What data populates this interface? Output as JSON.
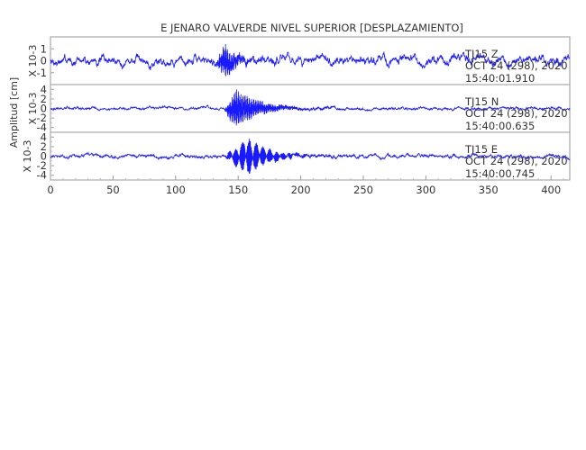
{
  "chart_data": {
    "type": "line",
    "title": "E JENARO VALVERDE NIVEL SUPERIOR [DESPLAZAMIENTO]",
    "ylabel": "Amplitud [cm]",
    "xlim": [
      0,
      415
    ],
    "x_ticks": [
      "0",
      "50",
      "100",
      "150",
      "200",
      "250",
      "300",
      "350",
      "400"
    ],
    "grid": false,
    "color": "#1a1aff",
    "panels": [
      {
        "station": "TJ15",
        "component": "Z",
        "date": "OCT 24 (298), 2020",
        "time": "15:40:01.910",
        "ylabel": "X 10-3",
        "ylim": [
          -2,
          2
        ],
        "y_ticks": [
          "1",
          "0",
          "-1"
        ],
        "y_tick_values": [
          1,
          0,
          -1
        ],
        "noise": 0.75,
        "wave_start": 132,
        "wave_peak_time": 140,
        "wave_amp": 1.5,
        "wave_decay": 0.12,
        "wave_freq": 3.2,
        "seed": 7
      },
      {
        "station": "TJ15",
        "component": "N",
        "date": "OCT 24 (298), 2020",
        "time": "15:40:00.635",
        "ylabel": "X 10-3",
        "ylim": [
          -5,
          5
        ],
        "y_ticks": [
          "4",
          "2",
          "0",
          "-2",
          "-4"
        ],
        "y_tick_values": [
          4,
          2,
          0,
          -2,
          -4
        ],
        "noise": 0.6,
        "wave_start": 139,
        "wave_peak_time": 148,
        "wave_amp": 4.4,
        "wave_decay": 0.055,
        "wave_freq": 2.6,
        "seed": 19
      },
      {
        "station": "TJ15",
        "component": "E",
        "date": "OCT 24 (298), 2020",
        "time": "15:40:00.745",
        "ylabel": "X 10-3",
        "ylim": [
          -5,
          5
        ],
        "y_ticks": [
          "4",
          "2",
          "0",
          "-2",
          "-4"
        ],
        "y_tick_values": [
          4,
          2,
          0,
          -2,
          -4
        ],
        "noise": 0.75,
        "wave_start": 139,
        "wave_peak_time": 158,
        "wave_amp": 4.2,
        "wave_decay": 0.06,
        "wave_freq": 2.8,
        "seed": 31
      }
    ]
  }
}
